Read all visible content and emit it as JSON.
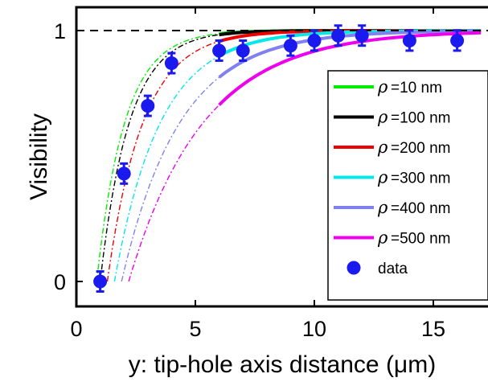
{
  "chart_data": {
    "type": "line",
    "xlabel": "y: tip-hole axis distance (μm)",
    "ylabel": "Visibility",
    "xlim": [
      0,
      17
    ],
    "ylim": [
      -0.09,
      1.06
    ],
    "xticks": [
      0,
      5,
      10,
      15
    ],
    "yticks": [
      0,
      1
    ],
    "reference_line": {
      "y": 1,
      "style": "dashed",
      "color": "#000000"
    },
    "legend_position": "bottom-right",
    "rho_symbol": "ρ",
    "series": [
      {
        "name": "=10 nm",
        "color": "#00ee00",
        "dashed_x": [
          0.85,
          6
        ],
        "solid_x": [
          6,
          17
        ],
        "y0": 0.85,
        "k": 0.85
      },
      {
        "name": "=100 nm",
        "color": "#000000",
        "dashed_x": [
          1.0,
          6
        ],
        "solid_x": [
          6,
          17
        ],
        "y0": 1.0,
        "k": 0.82
      },
      {
        "name": "=200 nm",
        "color": "#ee0000",
        "dashed_x": [
          1.3,
          6
        ],
        "solid_x": [
          6,
          17
        ],
        "y0": 1.3,
        "k": 0.67
      },
      {
        "name": "=300 nm",
        "color": "#00e8e8",
        "dashed_x": [
          1.6,
          6
        ],
        "solid_x": [
          6,
          17
        ],
        "y0": 1.6,
        "k": 0.52
      },
      {
        "name": "=400 nm",
        "color": "#8080f0",
        "dashed_x": [
          1.9,
          6
        ],
        "solid_x": [
          6,
          17
        ],
        "y0": 1.9,
        "k": 0.41
      },
      {
        "name": "=500 nm",
        "color": "#ee00ee",
        "dashed_x": [
          2.2,
          6
        ],
        "solid_x": [
          6,
          17
        ],
        "y0": 2.2,
        "k": 0.32
      }
    ],
    "data_points": {
      "name": "data",
      "color": "#1a1aee",
      "points": [
        {
          "x": 1,
          "y": 0.0,
          "err": 0.04
        },
        {
          "x": 2,
          "y": 0.43,
          "err": 0.04
        },
        {
          "x": 3,
          "y": 0.7,
          "err": 0.04
        },
        {
          "x": 4,
          "y": 0.87,
          "err": 0.04
        },
        {
          "x": 6,
          "y": 0.92,
          "err": 0.04
        },
        {
          "x": 7,
          "y": 0.92,
          "err": 0.04
        },
        {
          "x": 9,
          "y": 0.94,
          "err": 0.04
        },
        {
          "x": 10,
          "y": 0.96,
          "err": 0.04
        },
        {
          "x": 11,
          "y": 0.98,
          "err": 0.04
        },
        {
          "x": 12,
          "y": 0.98,
          "err": 0.04
        },
        {
          "x": 14,
          "y": 0.96,
          "err": 0.04
        },
        {
          "x": 16,
          "y": 0.96,
          "err": 0.04
        }
      ]
    }
  }
}
